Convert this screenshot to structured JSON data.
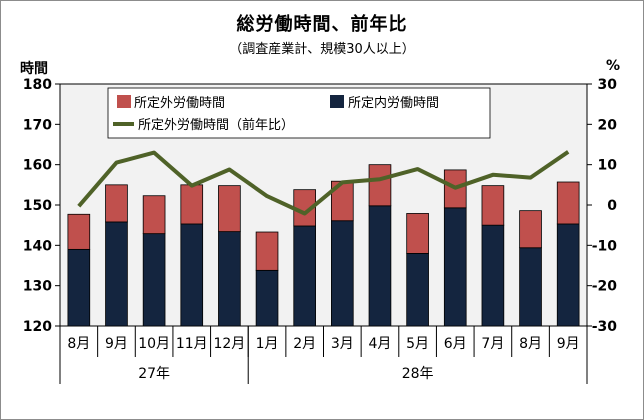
{
  "chart_data": {
    "type": "bar",
    "title": "総労働時間、前年比",
    "subtitle": "（調査産業計、規模30人以上）",
    "ylabel_left": "時間",
    "ylabel_right": "%",
    "categories": [
      "8月",
      "9月",
      "10月",
      "11月",
      "12月",
      "1月",
      "2月",
      "3月",
      "4月",
      "5月",
      "6月",
      "7月",
      "8月",
      "9月"
    ],
    "groups": [
      {
        "label": "27年",
        "count": 5
      },
      {
        "label": "28年",
        "count": 9
      }
    ],
    "ylim_left": [
      120,
      180
    ],
    "yticks_left": [
      120,
      130,
      140,
      150,
      160,
      170,
      180
    ],
    "ylim_right": [
      -30,
      30
    ],
    "yticks_right": [
      -30,
      -20,
      -10,
      0,
      10,
      20,
      30
    ],
    "series": [
      {
        "name": "所定内労働時間",
        "kind": "stacked-bar",
        "color": "#14253f",
        "values": [
          139.0,
          145.8,
          142.9,
          145.3,
          143.4,
          133.8,
          144.8,
          146.1,
          149.8,
          138.0,
          149.3,
          145.0,
          139.4,
          145.3
        ]
      },
      {
        "name": "所定外労働時間",
        "kind": "stacked-bar",
        "color": "#c0504d",
        "values": [
          8.7,
          9.2,
          9.4,
          9.7,
          11.4,
          9.5,
          9.0,
          9.8,
          10.2,
          9.9,
          9.4,
          9.8,
          9.2,
          10.4
        ]
      },
      {
        "name": "所定外労働時間（前年比）",
        "kind": "line",
        "axis": "right",
        "color": "#4f6228",
        "values": [
          -0.3,
          10.5,
          13.0,
          4.8,
          8.8,
          2.2,
          -2.1,
          5.6,
          6.4,
          8.9,
          4.3,
          7.5,
          6.8,
          13.2
        ]
      }
    ],
    "legend": {
      "placement": "top",
      "items": [
        "所定外労働時間",
        "所定内労働時間",
        "所定外労働時間（前年比）"
      ]
    },
    "grid": false,
    "plot_background": "#f2f2f2"
  }
}
